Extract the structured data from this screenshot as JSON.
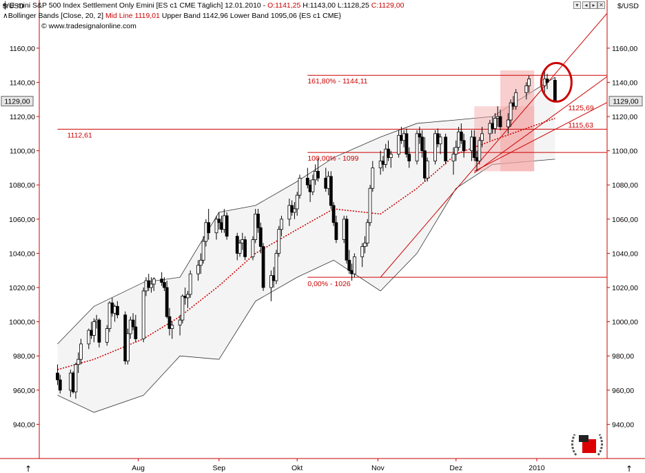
{
  "header": {
    "currency": "$/USD",
    "currency_right": "$/USD",
    "line1_name": "E-mini S&P 500 Index Settlement Only Emini [ES c1 CME  Täglich] 12.01.2010 - ",
    "line1_open": "O:1141,25",
    "line1_mid": " H:1143,00 L:1128,25 ",
    "line1_close": "C:1129,00",
    "line2_name": "Bollinger Bands [Close, 20, 2] ",
    "line2_mid": "Mid Line 1119,01",
    "line2_rest": " Upper Band 1142,96 Lower Band 1095,06 {ES c1 CME}",
    "line3": "© www.tradesignalonline.com"
  },
  "controls": [
    "▾",
    "◂",
    "▸",
    "✕"
  ],
  "last_price_tag": "1129,00",
  "corner_arrow": "↑",
  "colors": {
    "band_fill": "#f4f4f4",
    "band_line": "#333333",
    "midline": "#cc0000",
    "levels": "#cc0000",
    "candle": "#000000",
    "highlight": "#f4a6a6",
    "axis": "#cc0000"
  },
  "chart_data": {
    "type": "candlestick",
    "instrument": "E-mini S&P 500 Index Settlement Only Emini [ES c1 CME  Täglich]",
    "ylim": [
      920,
      1168
    ],
    "y_ticks": [
      "940,00",
      "960,00",
      "980,00",
      "1000,00",
      "1020,00",
      "1040,00",
      "1060,00",
      "1080,00",
      "1100,00",
      "1120,00",
      "1140,00",
      "1160,00"
    ],
    "x_ticks": [
      {
        "label": "Aug",
        "date": "2009-08-01"
      },
      {
        "label": "Sep",
        "date": "2009-09-01"
      },
      {
        "label": "Okt",
        "date": "2009-10-01"
      },
      {
        "label": "Nov",
        "date": "2009-11-01"
      },
      {
        "label": "Dez",
        "date": "2009-12-01"
      },
      {
        "label": "2010",
        "date": "2010-01-01"
      }
    ],
    "price_levels": [
      {
        "label": "161,80% - 1144,11",
        "value": 1144.11,
        "x_from": "2009-10-05"
      },
      {
        "label": "1112,61",
        "value": 1112.61,
        "x_from": "2009-07-01"
      },
      {
        "label": "100,00% - 1099",
        "value": 1099,
        "x_from": "2009-10-05"
      },
      {
        "label": "0,00% - 1026",
        "value": 1026,
        "x_from": "2009-10-05"
      }
    ],
    "trend_lines": [
      {
        "label": "",
        "from": [
          "2009-11-02",
          1026
        ],
        "to": [
          "2010-01-12",
          1152
        ]
      },
      {
        "label": "1125,69",
        "from": [
          "2009-12-08",
          1087
        ],
        "to": [
          "2010-01-12",
          1125.69
        ]
      },
      {
        "label": "1115,63",
        "from": [
          "2009-12-08",
          1088
        ],
        "to": [
          "2010-01-12",
          1115.63
        ]
      }
    ],
    "highlights": [
      {
        "from": "2009-12-08",
        "to": "2009-12-31",
        "low": 1088,
        "high": 1126
      },
      {
        "from": "2009-12-18",
        "to": "2009-12-31",
        "low": 1088,
        "high": 1147
      }
    ],
    "circle_marker": {
      "date": "2010-01-08",
      "value": 1140
    },
    "ohlc": [
      [
        "2009-07-01",
        970,
        975,
        963,
        966
      ],
      [
        "2009-07-02",
        966,
        969,
        958,
        960
      ],
      [
        "2009-07-06",
        960,
        972,
        956,
        970
      ],
      [
        "2009-07-07",
        970,
        971,
        958,
        959
      ],
      [
        "2009-07-08",
        959,
        976,
        955,
        975
      ],
      [
        "2009-07-09",
        975,
        982,
        970,
        978
      ],
      [
        "2009-07-10",
        978,
        990,
        975,
        987
      ],
      [
        "2009-07-13",
        987,
        996,
        984,
        995
      ],
      [
        "2009-07-14",
        995,
        1000,
        990,
        992
      ],
      [
        "2009-07-15",
        992,
        1002,
        988,
        1000
      ],
      [
        "2009-07-16",
        1000,
        1004,
        996,
        1001
      ],
      [
        "2009-07-17",
        1001,
        1002,
        985,
        988
      ],
      [
        "2009-07-20",
        988,
        998,
        986,
        996
      ],
      [
        "2009-07-21",
        996,
        1012,
        994,
        1011
      ],
      [
        "2009-07-22",
        1011,
        1014,
        1003,
        1005
      ],
      [
        "2009-07-23",
        1005,
        1010,
        1000,
        1009
      ],
      [
        "2009-07-24",
        1009,
        1012,
        1002,
        1004
      ],
      [
        "2009-07-27",
        1004,
        1006,
        975,
        977
      ],
      [
        "2009-07-28",
        977,
        996,
        975,
        993
      ],
      [
        "2009-07-29",
        993,
        1003,
        990,
        1001
      ],
      [
        "2009-07-30",
        1001,
        1005,
        995,
        997
      ],
      [
        "2009-07-31",
        997,
        1004,
        988,
        990
      ],
      [
        "2009-08-03",
        990,
        1020,
        988,
        1018
      ],
      [
        "2009-08-04",
        1018,
        1026,
        1015,
        1024
      ],
      [
        "2009-08-05",
        1024,
        1028,
        1018,
        1020
      ],
      [
        "2009-08-06",
        1020,
        1026,
        1017,
        1022
      ],
      [
        "2009-08-07",
        1022,
        1026,
        1018,
        1025
      ],
      [
        "2009-08-10",
        1025,
        1029,
        1021,
        1023
      ],
      [
        "2009-08-11",
        1023,
        1026,
        1018,
        1020
      ],
      [
        "2009-08-12",
        1020,
        1024,
        1002,
        1003
      ],
      [
        "2009-08-13",
        1003,
        1008,
        992,
        996
      ],
      [
        "2009-08-14",
        996,
        1000,
        990,
        998
      ],
      [
        "2009-08-17",
        998,
        1004,
        992,
        1001
      ],
      [
        "2009-08-18",
        1001,
        1016,
        999,
        1015
      ],
      [
        "2009-08-19",
        1015,
        1020,
        1010,
        1014
      ],
      [
        "2009-08-20",
        1014,
        1018,
        1008,
        1016
      ],
      [
        "2009-08-21",
        1016,
        1030,
        1014,
        1028
      ],
      [
        "2009-08-24",
        1028,
        1036,
        1024,
        1033
      ],
      [
        "2009-08-25",
        1033,
        1040,
        1028,
        1036
      ],
      [
        "2009-08-26",
        1036,
        1050,
        1034,
        1047
      ],
      [
        "2009-08-27",
        1047,
        1060,
        1044,
        1058
      ],
      [
        "2009-08-28",
        1058,
        1066,
        1048,
        1052
      ],
      [
        "2009-08-31",
        1052,
        1062,
        1048,
        1060
      ],
      [
        "2009-09-01",
        1060,
        1064,
        1054,
        1058
      ],
      [
        "2009-09-02",
        1058,
        1062,
        1052,
        1054
      ],
      [
        "2009-09-03",
        1054,
        1066,
        1052,
        1062
      ],
      [
        "2009-09-04",
        1062,
        1064,
        1048,
        1050
      ],
      [
        "2009-09-08",
        1050,
        1052,
        1036,
        1040
      ],
      [
        "2009-09-09",
        1040,
        1048,
        1038,
        1046
      ],
      [
        "2009-09-10",
        1046,
        1052,
        1042,
        1048
      ],
      [
        "2009-09-11",
        1048,
        1050,
        1036,
        1038
      ],
      [
        "2009-09-14",
        1038,
        1050,
        1036,
        1048
      ],
      [
        "2009-09-15",
        1048,
        1066,
        1046,
        1063
      ],
      [
        "2009-09-16",
        1063,
        1066,
        1052,
        1055
      ],
      [
        "2009-09-17",
        1055,
        1058,
        1040,
        1044
      ],
      [
        "2009-09-18",
        1044,
        1046,
        1018,
        1020
      ],
      [
        "2009-09-21",
        1020,
        1030,
        1012,
        1027
      ],
      [
        "2009-09-22",
        1027,
        1032,
        1020,
        1024
      ],
      [
        "2009-09-23",
        1024,
        1042,
        1022,
        1040
      ],
      [
        "2009-09-24",
        1040,
        1056,
        1038,
        1054
      ],
      [
        "2009-09-25",
        1054,
        1062,
        1050,
        1060
      ],
      [
        "2009-09-28",
        1060,
        1072,
        1056,
        1068
      ],
      [
        "2009-09-29",
        1068,
        1071,
        1062,
        1064
      ],
      [
        "2009-09-30",
        1064,
        1070,
        1060,
        1066
      ],
      [
        "2009-10-01",
        1066,
        1076,
        1062,
        1074
      ],
      [
        "2009-10-02",
        1074,
        1086,
        1072,
        1084
      ],
      [
        "2009-10-05",
        1084,
        1090,
        1078,
        1080
      ],
      [
        "2009-10-06",
        1080,
        1083,
        1070,
        1076
      ],
      [
        "2009-10-07",
        1076,
        1086,
        1074,
        1083
      ],
      [
        "2009-10-08",
        1083,
        1092,
        1080,
        1088
      ],
      [
        "2009-10-09",
        1088,
        1096,
        1082,
        1084
      ],
      [
        "2009-10-12",
        1084,
        1090,
        1076,
        1078
      ],
      [
        "2009-10-13",
        1078,
        1088,
        1074,
        1085
      ],
      [
        "2009-10-14",
        1085,
        1088,
        1066,
        1068
      ],
      [
        "2009-10-15",
        1068,
        1070,
        1056,
        1058
      ],
      [
        "2009-10-16",
        1058,
        1062,
        1046,
        1048
      ],
      [
        "2009-10-19",
        1048,
        1062,
        1046,
        1060
      ],
      [
        "2009-10-20",
        1060,
        1062,
        1034,
        1036
      ],
      [
        "2009-10-21",
        1036,
        1042,
        1028,
        1030
      ],
      [
        "2009-10-22",
        1030,
        1034,
        1024,
        1028
      ],
      [
        "2009-10-23",
        1028,
        1040,
        1026,
        1038
      ],
      [
        "2009-10-26",
        1038,
        1046,
        1032,
        1044
      ],
      [
        "2009-10-27",
        1044,
        1050,
        1040,
        1046
      ],
      [
        "2009-10-28",
        1046,
        1060,
        1044,
        1058
      ],
      [
        "2009-10-29",
        1058,
        1080,
        1056,
        1078
      ],
      [
        "2009-10-30",
        1078,
        1094,
        1076,
        1090
      ],
      [
        "2009-11-02",
        1090,
        1100,
        1086,
        1094
      ],
      [
        "2009-11-03",
        1094,
        1097,
        1088,
        1092
      ],
      [
        "2009-11-04",
        1092,
        1104,
        1090,
        1101
      ],
      [
        "2009-11-05",
        1101,
        1106,
        1094,
        1096
      ],
      [
        "2009-11-06",
        1096,
        1100,
        1090,
        1098
      ],
      [
        "2009-11-09",
        1098,
        1112,
        1096,
        1109
      ],
      [
        "2009-11-10",
        1109,
        1114,
        1104,
        1106
      ],
      [
        "2009-11-11",
        1106,
        1112,
        1102,
        1110
      ],
      [
        "2009-11-12",
        1110,
        1113,
        1096,
        1098
      ],
      [
        "2009-11-13",
        1098,
        1102,
        1090,
        1094
      ],
      [
        "2009-11-16",
        1094,
        1112,
        1092,
        1110
      ],
      [
        "2009-11-17",
        1110,
        1114,
        1104,
        1108
      ],
      [
        "2009-11-18",
        1108,
        1112,
        1096,
        1100
      ],
      [
        "2009-11-19",
        1100,
        1108,
        1082,
        1084
      ],
      [
        "2009-11-20",
        1084,
        1096,
        1082,
        1094
      ],
      [
        "2009-11-23",
        1094,
        1112,
        1092,
        1110
      ],
      [
        "2009-11-24",
        1110,
        1113,
        1102,
        1104
      ],
      [
        "2009-11-25",
        1104,
        1110,
        1098,
        1108
      ],
      [
        "2009-11-27",
        1108,
        1110,
        1092,
        1094
      ],
      [
        "2009-11-30",
        1094,
        1102,
        1086,
        1098
      ],
      [
        "2009-12-01",
        1098,
        1106,
        1094,
        1102
      ],
      [
        "2009-12-02",
        1102,
        1114,
        1100,
        1111
      ],
      [
        "2009-12-03",
        1111,
        1116,
        1104,
        1106
      ],
      [
        "2009-12-04",
        1106,
        1110,
        1096,
        1100
      ],
      [
        "2009-12-07",
        1100,
        1112,
        1094,
        1108
      ],
      [
        "2009-12-08",
        1108,
        1112,
        1094,
        1096
      ],
      [
        "2009-12-09",
        1096,
        1100,
        1088,
        1094
      ],
      [
        "2009-12-10",
        1094,
        1108,
        1092,
        1106
      ],
      [
        "2009-12-11",
        1106,
        1114,
        1102,
        1110
      ],
      [
        "2009-12-14",
        1110,
        1118,
        1106,
        1116
      ],
      [
        "2009-12-15",
        1116,
        1120,
        1110,
        1113
      ],
      [
        "2009-12-16",
        1113,
        1122,
        1110,
        1119
      ],
      [
        "2009-12-17",
        1119,
        1126,
        1114,
        1120
      ],
      [
        "2009-12-18",
        1120,
        1124,
        1112,
        1114
      ],
      [
        "2009-12-21",
        1114,
        1122,
        1110,
        1118
      ],
      [
        "2009-12-22",
        1118,
        1130,
        1114,
        1128
      ],
      [
        "2009-12-23",
        1128,
        1132,
        1124,
        1126
      ],
      [
        "2009-12-24",
        1126,
        1136,
        1124,
        1134
      ],
      [
        "2009-12-28",
        1134,
        1140,
        1130,
        1138
      ],
      [
        "2009-12-29",
        1138,
        1144,
        1134,
        1142
      ],
      [
        "2010-01-04",
        1138,
        1148,
        1134,
        1142
      ],
      [
        "2010-01-05",
        1142,
        1145,
        1136,
        1140
      ],
      [
        "2010-01-08",
        1141.25,
        1143,
        1128.25,
        1129
      ]
    ],
    "bollinger": [
      [
        "2009-07-01",
        987,
        972,
        957
      ],
      [
        "2009-07-15",
        1009,
        978,
        947
      ],
      [
        "2009-08-03",
        1023,
        990,
        957
      ],
      [
        "2009-08-17",
        1026,
        1003,
        980
      ],
      [
        "2009-09-01",
        1064,
        1021,
        978
      ],
      [
        "2009-09-15",
        1068,
        1040,
        1012
      ],
      [
        "2009-10-01",
        1082,
        1054,
        1026
      ],
      [
        "2009-10-15",
        1096,
        1066,
        1036
      ],
      [
        "2009-11-02",
        1108,
        1063,
        1018
      ],
      [
        "2009-11-16",
        1116,
        1078,
        1040
      ],
      [
        "2009-12-01",
        1118,
        1098,
        1078
      ],
      [
        "2009-12-15",
        1120,
        1106,
        1092
      ],
      [
        "2010-01-08",
        1142.96,
        1119.01,
        1095.06
      ]
    ]
  }
}
